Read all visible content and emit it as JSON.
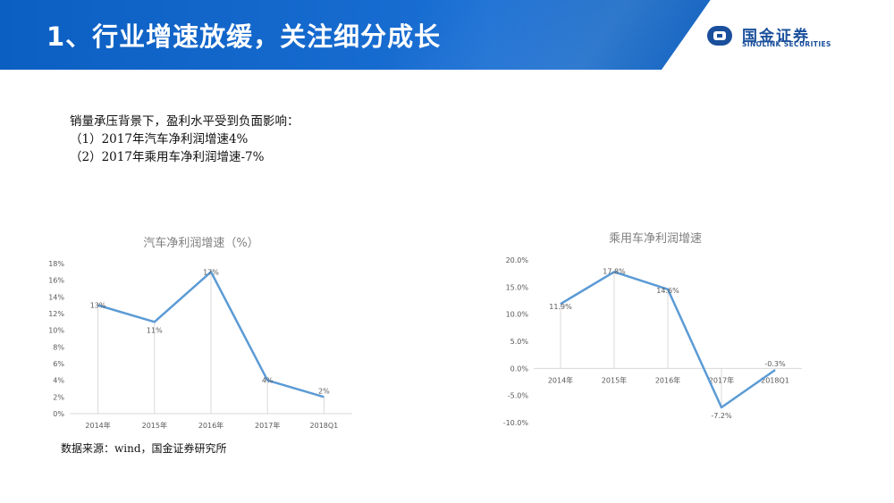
{
  "header": {
    "title": "1、行业增速放缓，关注细分成长",
    "logo_cn": "国金证券",
    "logo_en": "SINOLINK SECURITIES"
  },
  "notes": [
    "销量承压背景下，盈利水平受到负面影响：",
    "（1）2017年汽车净利润增速4%",
    "（2）2017年乘用车净利润增速-7%"
  ],
  "source": "数据来源：wind，国金证券研究所",
  "colors": {
    "header_blue": "#1566c8",
    "line": "#5b9bd5",
    "grid": "#d9d9d9",
    "axis_text": "#595959"
  },
  "chart_data": [
    {
      "type": "line",
      "title": "汽车净利润增速（%）",
      "categories": [
        "2014年",
        "2015年",
        "2016年",
        "2017年",
        "2018Q1"
      ],
      "values": [
        13,
        11,
        17,
        4,
        2
      ],
      "data_labels": [
        "13%",
        "11%",
        "17%",
        "4%",
        "2%"
      ],
      "yticks": [
        "18%",
        "16%",
        "14%",
        "12%",
        "10%",
        "8%",
        "6%",
        "4%",
        "2%",
        "0%"
      ],
      "ylim": [
        0,
        18
      ],
      "drop_lines": true,
      "grid": false
    },
    {
      "type": "line",
      "title": "乘用车净利润增速",
      "categories": [
        "2014年",
        "2015年",
        "2016年",
        "2017年",
        "2018Q1"
      ],
      "values": [
        11.9,
        17.8,
        14.6,
        -7.2,
        -0.3
      ],
      "data_labels": [
        "11.9%",
        "17.8%",
        "14.6%",
        "-7.2%",
        "-0.3%"
      ],
      "yticks": [
        "20.0%",
        "15.0%",
        "10.0%",
        "5.0%",
        "0.0%",
        "-5.0%",
        "-10.0%"
      ],
      "ylim": [
        -10,
        20
      ],
      "drop_lines": true,
      "grid": false
    }
  ]
}
